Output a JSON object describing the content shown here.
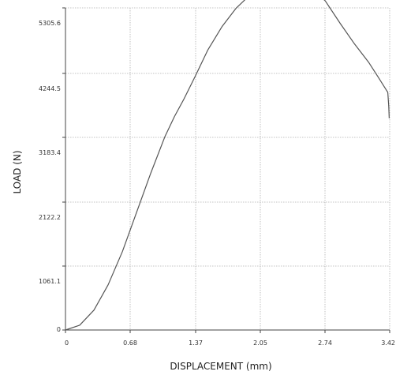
{
  "chart_data": {
    "type": "line",
    "title": "",
    "xlabel": "DISPLACEMENT (mm)",
    "ylabel": "LOAD (N)",
    "x_ticks": [
      "0",
      "0.68",
      "1.37",
      "2.05",
      "2.74",
      "3.42"
    ],
    "y_ticks": [
      "0",
      "1061.1",
      "2122.2",
      "3183.4",
      "4244.5",
      "5305.6"
    ],
    "xlim": [
      0,
      3.42
    ],
    "ylim": [
      0,
      5305.6
    ],
    "grid": true,
    "line_color": "#555555",
    "grid_color": "#b0b0b0",
    "series": [
      {
        "values": [
          [
            0,
            0
          ],
          [
            0.15,
            80
          ],
          [
            0.3,
            330
          ],
          [
            0.45,
            750
          ],
          [
            0.6,
            1300
          ],
          [
            0.75,
            1950
          ],
          [
            0.9,
            2600
          ],
          [
            1.05,
            3200
          ],
          [
            1.15,
            3530
          ],
          [
            1.25,
            3820
          ],
          [
            1.37,
            4200
          ],
          [
            1.5,
            4620
          ],
          [
            1.65,
            5000
          ],
          [
            1.8,
            5300
          ],
          [
            1.95,
            5520
          ],
          [
            2.05,
            5620
          ],
          [
            2.2,
            5710
          ],
          [
            2.35,
            5730
          ],
          [
            2.5,
            5700
          ],
          [
            2.6,
            5620
          ],
          [
            2.74,
            5420
          ],
          [
            2.9,
            5050
          ],
          [
            3.05,
            4720
          ],
          [
            3.2,
            4420
          ],
          [
            3.3,
            4180
          ],
          [
            3.38,
            3980
          ],
          [
            3.4,
            3930
          ],
          [
            3.41,
            3700
          ],
          [
            3.415,
            3500
          ]
        ]
      }
    ]
  }
}
